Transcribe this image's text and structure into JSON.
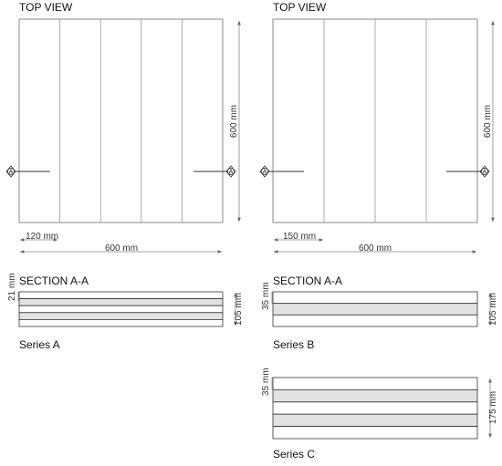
{
  "panels": [
    {
      "top_view_title": "TOP VIEW",
      "section_marker": "A",
      "strip_width_label": "120 mm",
      "total_width_label": "600 mm",
      "total_length_label": "600 mm",
      "strip_count": 5
    },
    {
      "top_view_title": "TOP VIEW",
      "section_marker": "A",
      "strip_width_label": "150 mm",
      "total_width_label": "600 mm",
      "total_length_label": "600 mm",
      "strip_count": 4
    }
  ],
  "sections": [
    {
      "title": "SECTION A-A",
      "layer_thickness_label": "21 mm",
      "total_thickness_label": "105 mm",
      "layers": 5,
      "caption": "Series A"
    },
    {
      "title": "SECTION A-A",
      "layer_thickness_label": "35 mm",
      "total_thickness_label": "105 mm",
      "layers": 3,
      "caption": "Series B"
    },
    {
      "title": "",
      "layer_thickness_label": "35 mm",
      "total_thickness_label": "175 mm",
      "layers": 5,
      "caption": "Series C"
    }
  ],
  "colors": {
    "line": "#8a8a8a",
    "dark": "#333333",
    "layer_fill": "#e2e2e2",
    "white": "#ffffff"
  }
}
